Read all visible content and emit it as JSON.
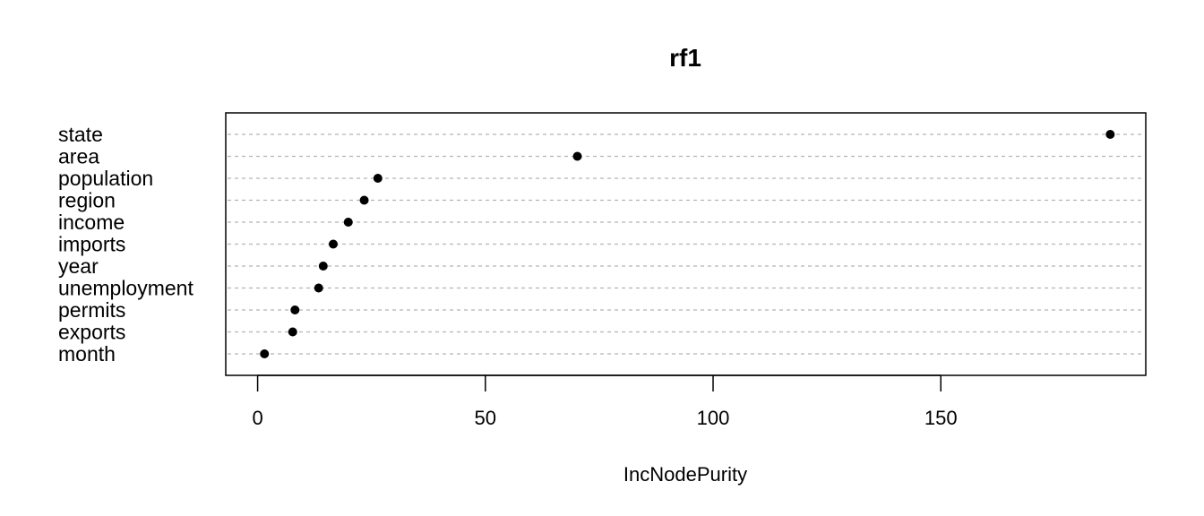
{
  "chart_data": {
    "type": "scatter",
    "subtype": "dotchart",
    "title": "rf1",
    "xlabel": "IncNodePurity",
    "ylabel": "",
    "xlim": [
      -7,
      195
    ],
    "xticks": [
      0,
      50,
      100,
      150
    ],
    "grid": "horizontal-dashed",
    "categories": [
      "state",
      "area",
      "population",
      "region",
      "income",
      "imports",
      "year",
      "unemployment",
      "permits",
      "exports",
      "month"
    ],
    "values": [
      187.2,
      70.2,
      26.4,
      23.4,
      19.9,
      16.6,
      14.4,
      13.4,
      8.2,
      7.7,
      1.5
    ]
  }
}
